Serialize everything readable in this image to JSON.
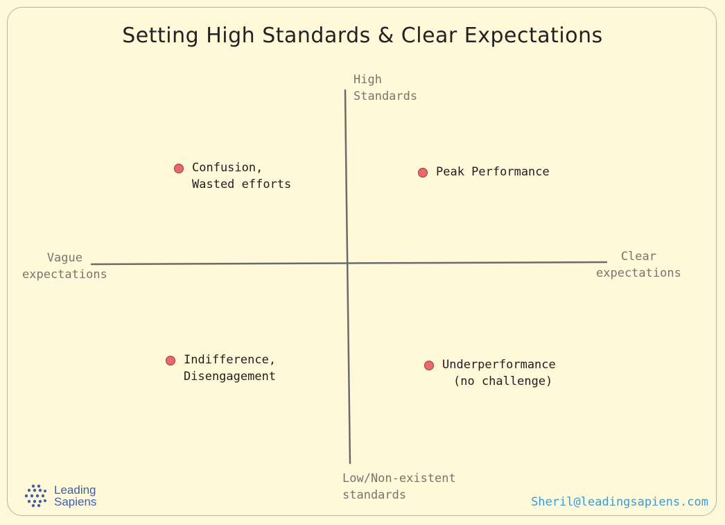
{
  "title": "Setting High Standards & Clear Expectations",
  "axes": {
    "top": [
      "High",
      "Standards"
    ],
    "bottom": [
      "Low/Non-existent",
      "standards"
    ],
    "left": [
      "Vague",
      "expectations"
    ],
    "right": [
      "Clear",
      "expectations"
    ]
  },
  "quadrants": {
    "top_left": [
      "Confusion,",
      "Wasted efforts"
    ],
    "top_right": [
      "Peak Performance"
    ],
    "bottom_left": [
      "Indifference,",
      "Disengagement"
    ],
    "bottom_right": [
      "Underperformance",
      "(no challenge)"
    ]
  },
  "branding": {
    "logo_lines": [
      "Leading",
      "Sapiens"
    ],
    "email": "Sheril@leadingsapiens.com"
  },
  "colors": {
    "dot": "#e86a6a",
    "axis": "#6b6b6b",
    "logo": "#3d5fa8",
    "email": "#3b9bd6"
  }
}
